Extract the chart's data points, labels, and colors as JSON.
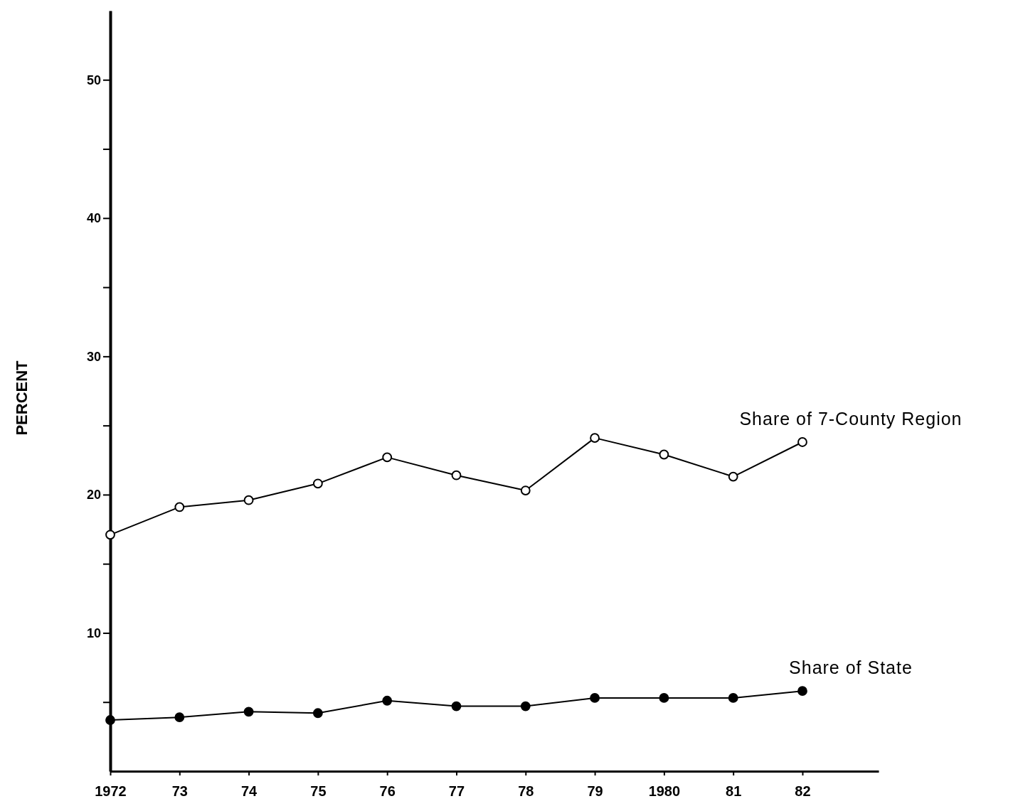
{
  "chart_data": {
    "type": "line",
    "ylabel": "PERCENT",
    "x": [
      1972,
      1973,
      1974,
      1975,
      1976,
      1977,
      1978,
      1979,
      1980,
      1981,
      1982
    ],
    "xlim": [
      1972,
      1983.1
    ],
    "xticks": [
      1972,
      {
        "value": 1973,
        "label": "73"
      },
      {
        "value": 1974,
        "label": "74"
      },
      {
        "value": 1975,
        "label": "75"
      },
      {
        "value": 1976,
        "label": "76"
      },
      {
        "value": 1977,
        "label": "77"
      },
      {
        "value": 1978,
        "label": "78"
      },
      {
        "value": 1979,
        "label": "79"
      },
      1980,
      {
        "value": 1981,
        "label": "81"
      },
      {
        "value": 1982,
        "label": "82"
      }
    ],
    "ylim": [
      0,
      55
    ],
    "yticks": [
      {
        "value": 5,
        "label": null
      },
      10,
      {
        "value": 15,
        "label": null
      },
      20,
      {
        "value": 25,
        "label": null
      },
      30,
      {
        "value": 35,
        "label": null
      },
      40,
      {
        "value": 45,
        "label": null
      },
      50
    ],
    "marker": "circle",
    "legend": false,
    "grid": false,
    "series": [
      {
        "name": "Share of 7-County Region",
        "color": "#000000",
        "values": [
          17.1,
          19.1,
          19.6,
          20.8,
          22.7,
          21.4,
          20.3,
          24.1,
          22.9,
          21.3,
          23.8
        ]
      },
      {
        "name": "Share of State",
        "color": "#000000",
        "values": [
          3.7,
          3.9,
          4.3,
          4.2,
          5.1,
          4.7,
          4.7,
          5.3,
          5.3,
          5.3,
          5.8
        ]
      }
    ]
  }
}
